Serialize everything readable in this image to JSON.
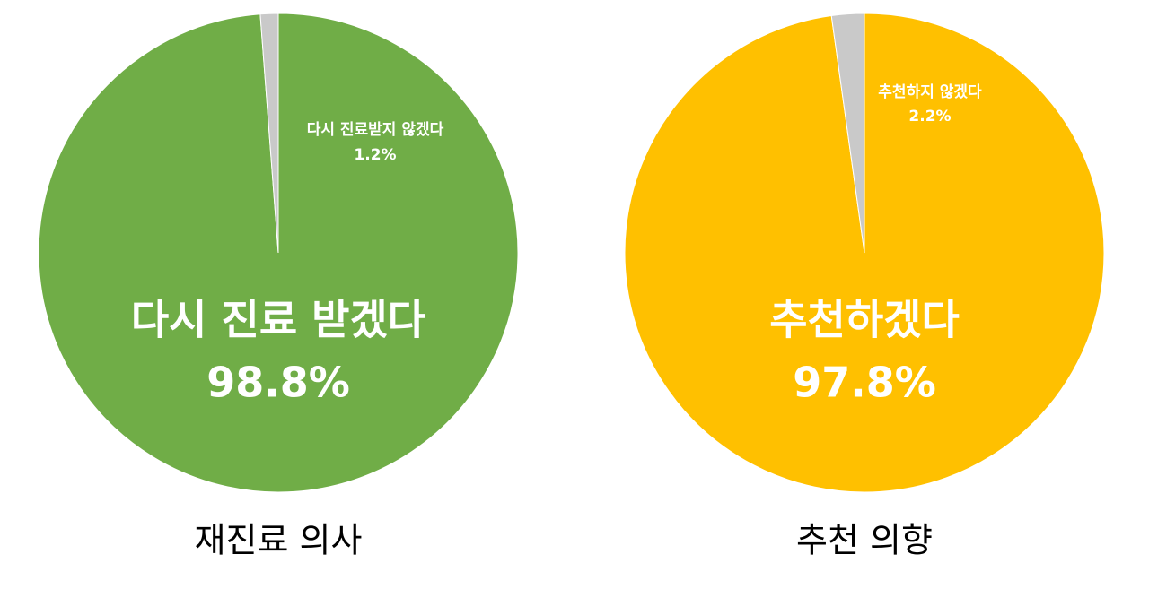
{
  "chart_data": [
    {
      "type": "pie",
      "title": "재진료 의사",
      "categories": [
        "다시 진료 받겠다",
        "다시 진료받지 않겠다"
      ],
      "values": [
        98.8,
        1.2
      ],
      "value_labels": [
        "98.8%",
        "1.2%"
      ],
      "colors": [
        "#70ad47",
        "#c9c9c9"
      ]
    },
    {
      "type": "pie",
      "title": "추천 의향",
      "categories": [
        "추천하겠다",
        "추천하지 않겠다"
      ],
      "values": [
        97.8,
        2.2
      ],
      "value_labels": [
        "97.8%",
        "2.2%"
      ],
      "colors": [
        "#ffc000",
        "#c9c9c9"
      ]
    }
  ]
}
